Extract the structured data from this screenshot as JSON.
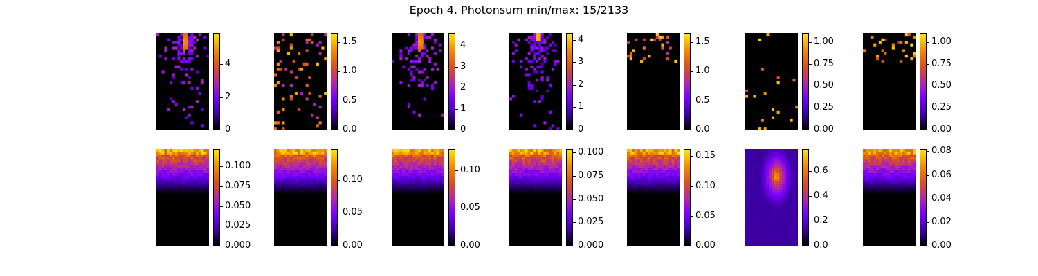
{
  "figure": {
    "title": "Epoch 4. Photonsum min/max: 15/2133",
    "colormap": "gnuplot",
    "colormap_stops": [
      "#000000",
      "#3a00a0",
      "#7a00ff",
      "#b026b0",
      "#d8501e",
      "#f08a00",
      "#ffe600"
    ]
  },
  "chart_data": [
    {
      "type": "heatmap",
      "row": 1,
      "col": 1,
      "pattern": "sparse-bright-spot",
      "colorbar": {
        "vmin": 0,
        "vmax": 5.9,
        "ticks": [
          0,
          2,
          4
        ],
        "tick_labels": [
          "0",
          "2",
          "4"
        ]
      }
    },
    {
      "type": "heatmap",
      "row": 1,
      "col": 2,
      "pattern": "sparse-scattered",
      "colorbar": {
        "vmin": 0,
        "vmax": 1.65,
        "ticks": [
          0,
          0.5,
          1.0,
          1.5
        ],
        "tick_labels": [
          "0.0",
          "0.5",
          "1.0",
          "1.5"
        ]
      }
    },
    {
      "type": "heatmap",
      "row": 1,
      "col": 3,
      "pattern": "sparse-bright-spot",
      "colorbar": {
        "vmin": 0,
        "vmax": 4.6,
        "ticks": [
          0,
          1,
          2,
          3,
          4
        ],
        "tick_labels": [
          "0",
          "1",
          "2",
          "3",
          "4"
        ]
      }
    },
    {
      "type": "heatmap",
      "row": 1,
      "col": 4,
      "pattern": "sparse-bright-spot-top",
      "colorbar": {
        "vmin": 0,
        "vmax": 4.3,
        "ticks": [
          0,
          1,
          2,
          3,
          4
        ],
        "tick_labels": [
          "0",
          "1",
          "2",
          "3",
          "4"
        ]
      }
    },
    {
      "type": "heatmap",
      "row": 1,
      "col": 5,
      "pattern": "sparse-top-dots",
      "colorbar": {
        "vmin": 0,
        "vmax": 1.65,
        "ticks": [
          0,
          0.5,
          1.0,
          1.5
        ],
        "tick_labels": [
          "0.0",
          "0.5",
          "1.0",
          "1.5"
        ]
      }
    },
    {
      "type": "heatmap",
      "row": 1,
      "col": 6,
      "pattern": "few-dots",
      "colorbar": {
        "vmin": 0,
        "vmax": 1.1,
        "ticks": [
          0,
          0.25,
          0.5,
          0.75,
          1.0
        ],
        "tick_labels": [
          "0.00",
          "0.25",
          "0.50",
          "0.75",
          "1.00"
        ]
      }
    },
    {
      "type": "heatmap",
      "row": 1,
      "col": 7,
      "pattern": "sparse-top-dots",
      "colorbar": {
        "vmin": 0,
        "vmax": 1.1,
        "ticks": [
          0,
          0.25,
          0.5,
          0.75,
          1.0
        ],
        "tick_labels": [
          "0.00",
          "0.25",
          "0.50",
          "0.75",
          "1.00"
        ]
      }
    },
    {
      "type": "heatmap",
      "row": 2,
      "col": 1,
      "pattern": "dense-top-gradient",
      "colorbar": {
        "vmin": 0,
        "vmax": 0.122,
        "ticks": [
          0,
          0.025,
          0.05,
          0.075,
          0.1
        ],
        "tick_labels": [
          "0.000",
          "0.025",
          "0.050",
          "0.075",
          "0.100"
        ]
      }
    },
    {
      "type": "heatmap",
      "row": 2,
      "col": 2,
      "pattern": "dense-top-gradient",
      "colorbar": {
        "vmin": 0,
        "vmax": 0.147,
        "ticks": [
          0,
          0.05,
          0.1
        ],
        "tick_labels": [
          "0.00",
          "0.05",
          "0.10"
        ]
      }
    },
    {
      "type": "heatmap",
      "row": 2,
      "col": 3,
      "pattern": "dense-top-gradient",
      "colorbar": {
        "vmin": 0,
        "vmax": 0.128,
        "ticks": [
          0,
          0.05,
          0.1
        ],
        "tick_labels": [
          "0.00",
          "0.05",
          "0.10"
        ]
      }
    },
    {
      "type": "heatmap",
      "row": 2,
      "col": 4,
      "pattern": "dense-top-gradient",
      "colorbar": {
        "vmin": 0,
        "vmax": 0.104,
        "ticks": [
          0,
          0.025,
          0.05,
          0.075,
          0.1
        ],
        "tick_labels": [
          "0.000",
          "0.025",
          "0.050",
          "0.075",
          "0.100"
        ]
      }
    },
    {
      "type": "heatmap",
      "row": 2,
      "col": 5,
      "pattern": "dense-top-gradient",
      "colorbar": {
        "vmin": 0,
        "vmax": 0.162,
        "ticks": [
          0,
          0.05,
          0.1,
          0.15
        ],
        "tick_labels": [
          "0.00",
          "0.05",
          "0.10",
          "0.15"
        ]
      }
    },
    {
      "type": "heatmap",
      "row": 2,
      "col": 6,
      "pattern": "dense-center-blob",
      "colorbar": {
        "vmin": 0,
        "vmax": 0.78,
        "ticks": [
          0,
          0.2,
          0.4,
          0.6
        ],
        "tick_labels": [
          "0.0",
          "0.2",
          "0.4",
          "0.6"
        ]
      }
    },
    {
      "type": "heatmap",
      "row": 2,
      "col": 7,
      "pattern": "dense-top-gradient",
      "colorbar": {
        "vmin": 0,
        "vmax": 0.082,
        "ticks": [
          0,
          0.02,
          0.04,
          0.06,
          0.08
        ],
        "tick_labels": [
          "0.00",
          "0.02",
          "0.04",
          "0.06",
          "0.08"
        ]
      }
    }
  ]
}
